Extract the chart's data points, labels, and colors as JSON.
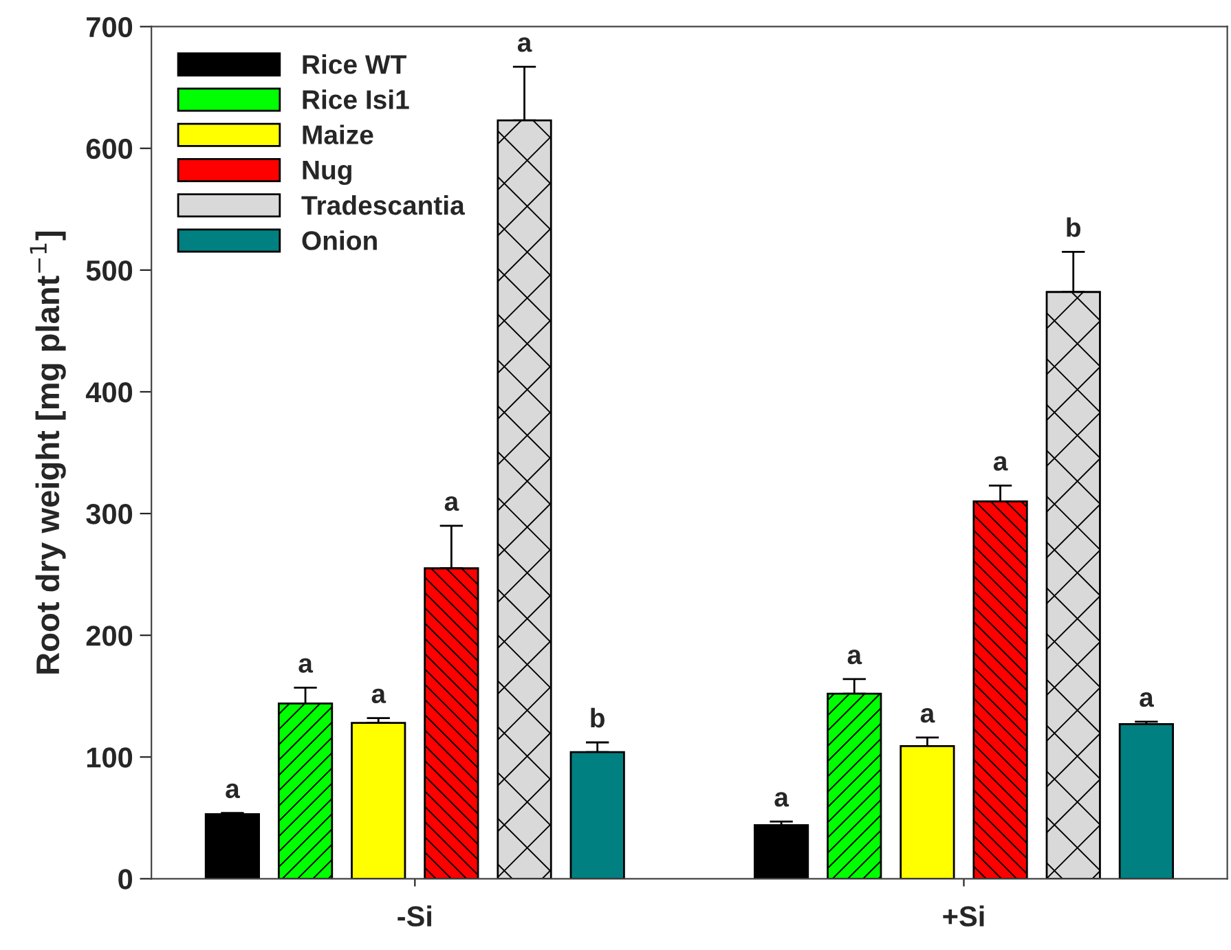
{
  "chart_data": {
    "type": "bar",
    "ylabel": "Root dry weight [mg plant$^{−1}$]",
    "categories": [
      "-Si",
      "+Si"
    ],
    "series": [
      {
        "name": "Rice WT",
        "color": "#000000",
        "values": [
          53,
          44
        ],
        "errors": [
          1,
          3
        ],
        "value_labels": [
          "a",
          "a"
        ]
      },
      {
        "name": "Rice Isi1",
        "color": "#00ff00",
        "values": [
          144,
          152
        ],
        "errors": [
          13,
          12
        ],
        "value_labels": [
          "a",
          "a"
        ]
      },
      {
        "name": "Maize",
        "color": "#ffff00",
        "values": [
          128,
          109
        ],
        "errors": [
          4,
          7
        ],
        "value_labels": [
          "a",
          "a"
        ]
      },
      {
        "name": "Nug",
        "color": "#ff0000",
        "values": [
          255,
          310
        ],
        "errors": [
          35,
          13
        ],
        "value_labels": [
          "a",
          "a"
        ]
      },
      {
        "name": "Tradescantia",
        "color": "#d9d9d9",
        "values": [
          623,
          482
        ],
        "errors": [
          44,
          33
        ],
        "value_labels": [
          "a",
          "b"
        ]
      },
      {
        "name": "Onion",
        "color": "#008080",
        "values": [
          104,
          127
        ],
        "errors": [
          8,
          2
        ],
        "value_labels": [
          "b",
          "a"
        ]
      }
    ],
    "ylim": [
      0,
      700
    ],
    "yticks": [
      0,
      100,
      200,
      300,
      400,
      500,
      600,
      700
    ],
    "grid": false,
    "legend": "top left"
  }
}
